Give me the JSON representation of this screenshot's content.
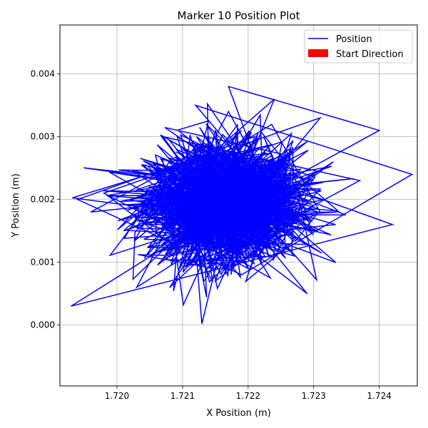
{
  "chart_data": {
    "type": "line",
    "title": "Marker 10 Position Plot",
    "xlabel": "X Position (m)",
    "ylabel": "Y Position (m)",
    "xlim": [
      1.71913,
      1.72458
    ],
    "ylim": [
      -0.00097,
      0.00478
    ],
    "xticks": [
      1.72,
      1.721,
      1.722,
      1.723,
      1.724
    ],
    "xtick_labels": [
      "1.720",
      "1.721",
      "1.722",
      "1.723",
      "1.724"
    ],
    "yticks": [
      0.0,
      0.001,
      0.002,
      0.003,
      0.004
    ],
    "ytick_labels": [
      "0.000",
      "0.001",
      "0.002",
      "0.003",
      "0.004"
    ],
    "grid": true,
    "legend_position": "top-right",
    "series": [
      {
        "name": "Position",
        "color": "#0000ff",
        "kind": "line",
        "note_random_walk_dense_cloud": true,
        "x": [
          1.7218,
          1.7214,
          1.7222,
          1.7209,
          1.7224,
          1.7211,
          1.7219,
          1.7205,
          1.7227,
          1.7213,
          1.722,
          1.7198,
          1.7231,
          1.7216,
          1.7208,
          1.7225,
          1.7212,
          1.7245,
          1.7219,
          1.7194,
          1.7221,
          1.7215,
          1.7233,
          1.7203,
          1.7217,
          1.7226,
          1.721,
          1.7242,
          1.7193,
          1.7222,
          1.7201,
          1.7224,
          1.7214,
          1.7237,
          1.7207,
          1.7219,
          1.7229,
          1.7212,
          1.7196,
          1.7223,
          1.7217,
          1.724,
          1.7205,
          1.7221,
          1.7215,
          1.723,
          1.7209,
          1.7218
        ],
        "y": [
          0.002,
          0.0024,
          0.0016,
          0.0027,
          0.0013,
          0.0022,
          0.0031,
          0.0018,
          0.0011,
          0.0029,
          0.0009,
          0.0021,
          0.0033,
          0.0014,
          0.0025,
          0.0019,
          0.0035,
          0.0024,
          0.0008,
          0.002,
          0.003,
          0.0012,
          0.0026,
          0.0006,
          0.0034,
          0.0017,
          0.0028,
          0.0016,
          0.0003,
          0.0022,
          0.0015,
          0.0036,
          0.001,
          0.0023,
          0.003,
          0.0013,
          0.0005,
          0.0027,
          0.0018,
          0.0021,
          0.0038,
          0.0031,
          0.0011,
          0.0024,
          0.0007,
          0.0019,
          0.0028,
          0.002
        ]
      },
      {
        "name": "Start Direction",
        "color": "#ff0000",
        "kind": "arrow"
      }
    ]
  }
}
